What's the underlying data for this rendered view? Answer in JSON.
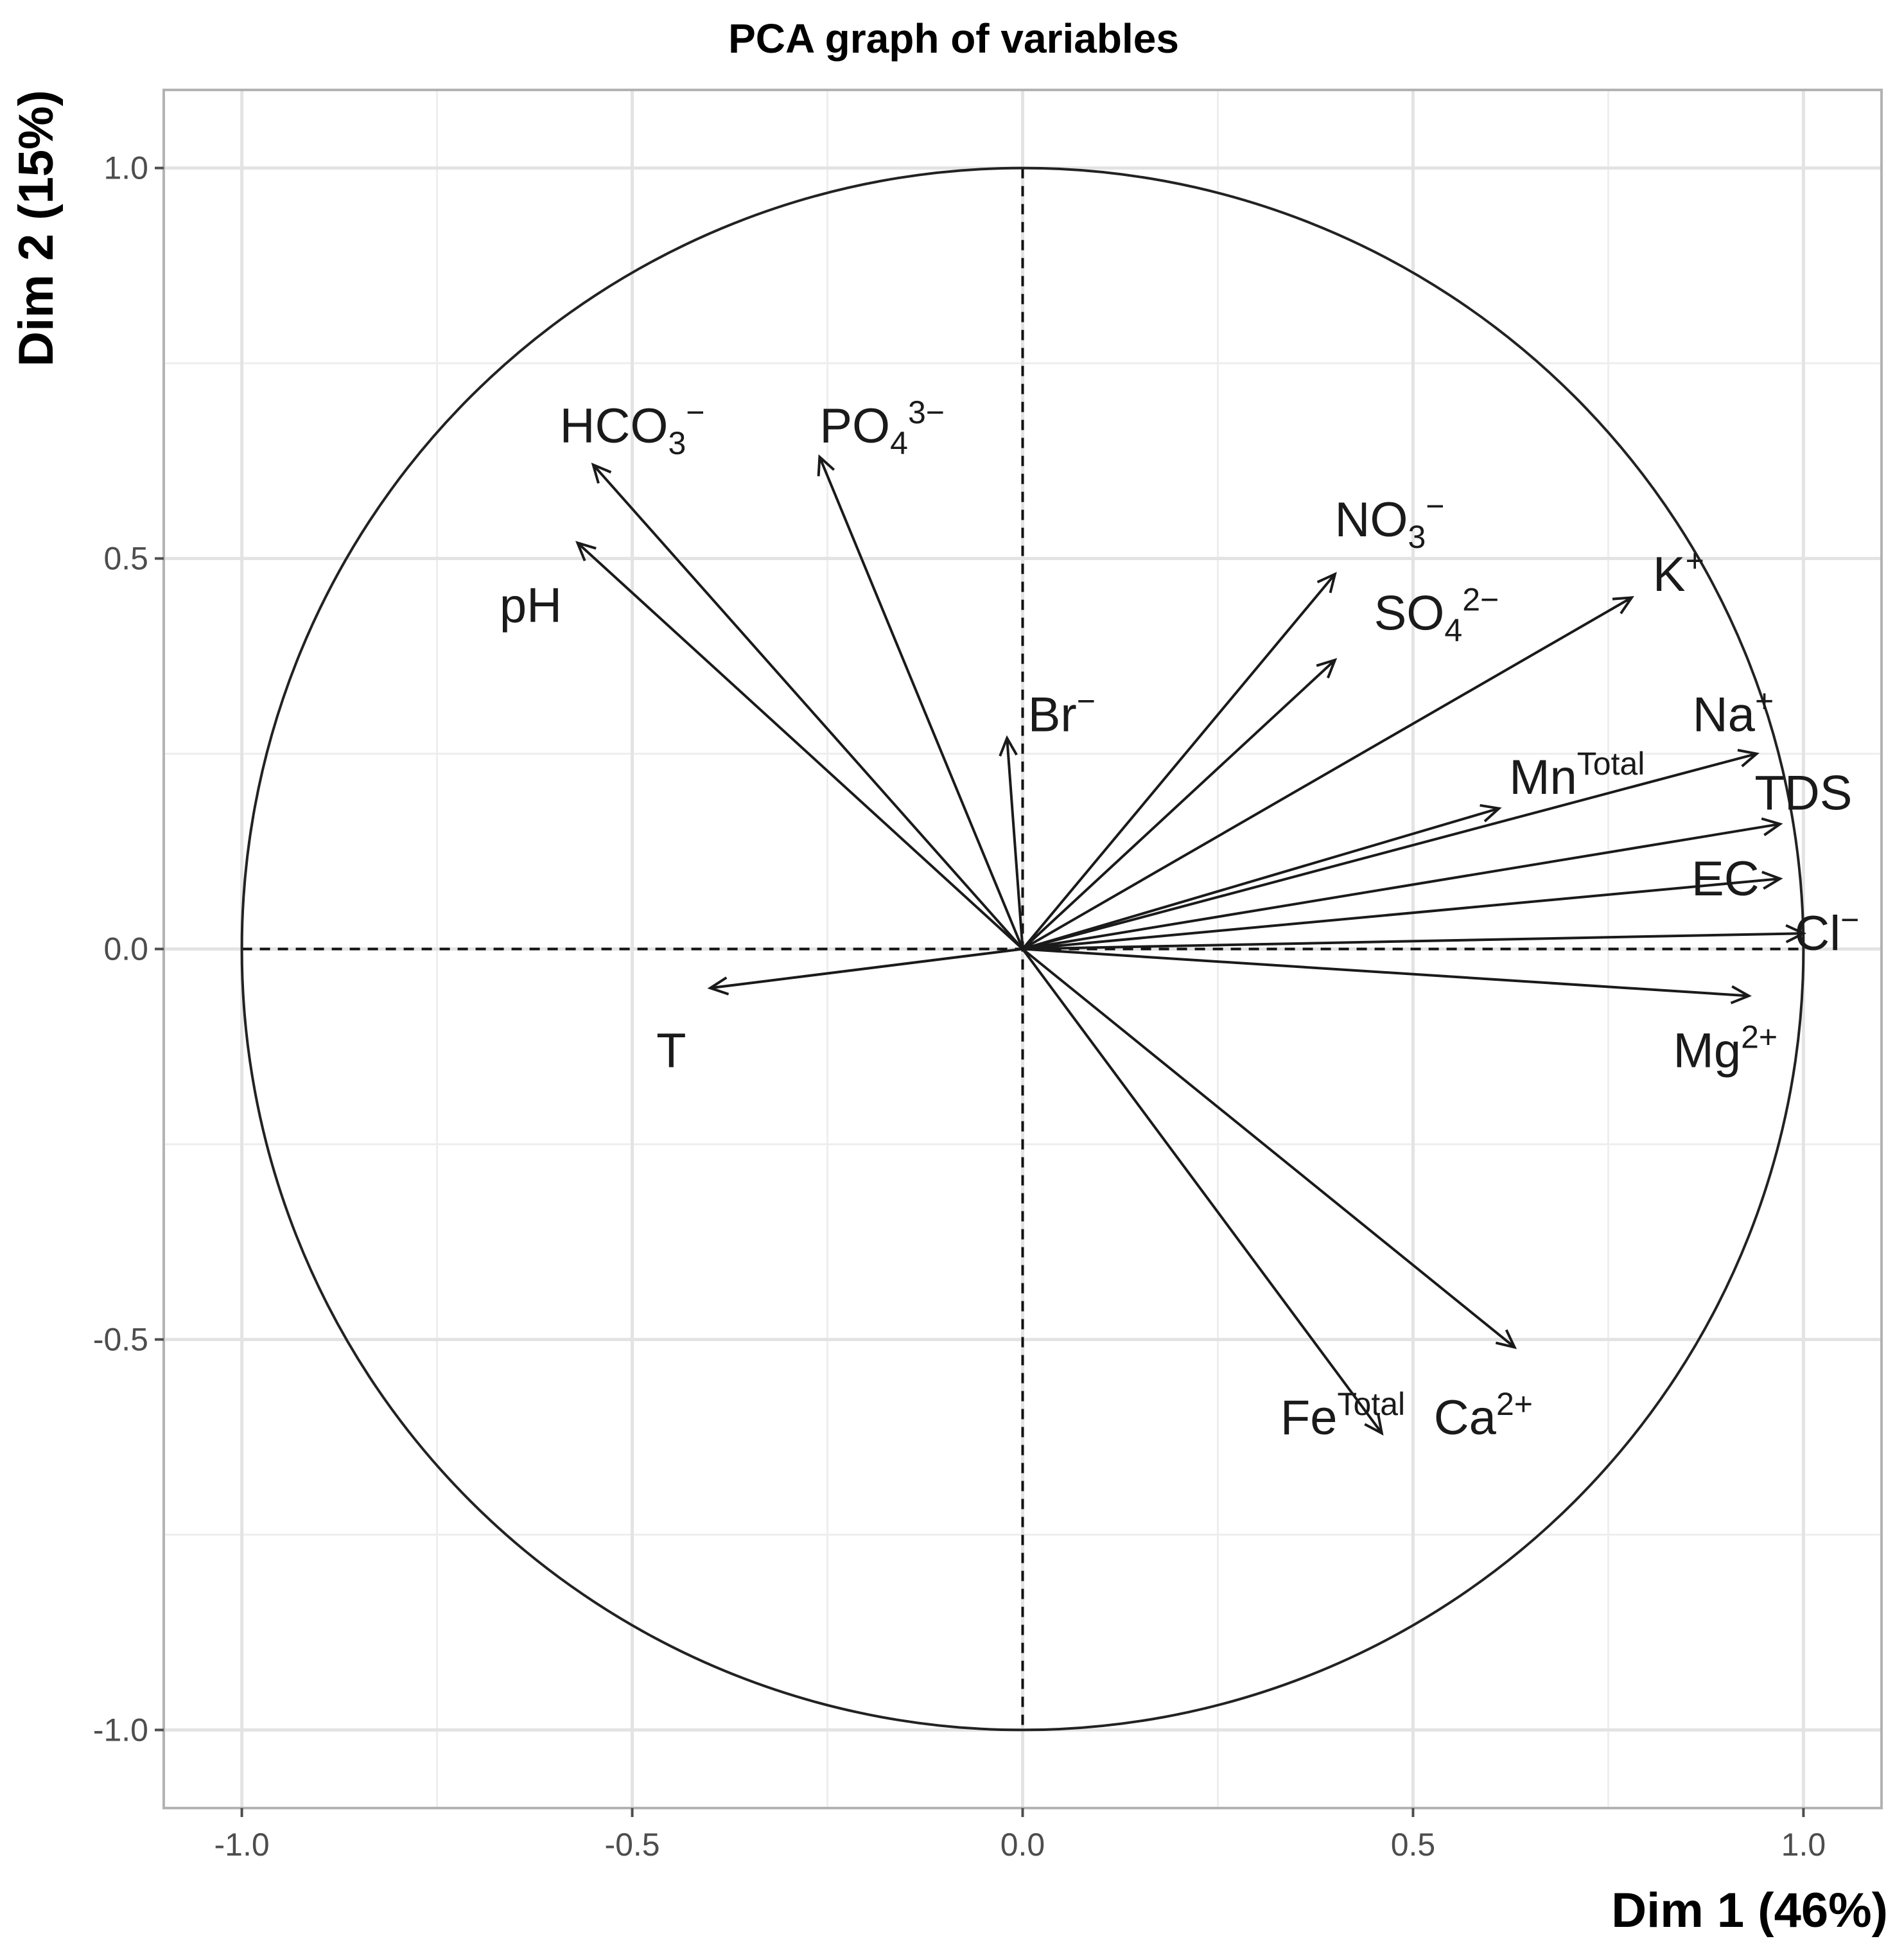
{
  "chart_data": {
    "type": "pca-variables",
    "title": "PCA graph of variables",
    "xlabel": "Dim 1 (46%)",
    "ylabel": "Dim 2 (15%)",
    "xlim": [
      -1.1,
      1.1
    ],
    "ylim": [
      -1.1,
      1.1
    ],
    "x_ticks": [
      -1.0,
      -0.5,
      0.0,
      0.5,
      1.0
    ],
    "y_ticks": [
      -1.0,
      -0.5,
      0.0,
      0.5,
      1.0
    ],
    "x_tick_labels": [
      "-1.0",
      "-0.5",
      "0.0",
      "0.5",
      "1.0"
    ],
    "y_tick_labels": [
      "-1.0",
      "-0.5",
      "0.0",
      "0.5",
      "1.0"
    ],
    "grid": true,
    "unit_circle": true,
    "variables": [
      {
        "id": "hco3",
        "label": "HCO",
        "sub": "3",
        "sup": "−",
        "x": -0.55,
        "y": 0.62,
        "lx": -0.5,
        "ly": 0.67
      },
      {
        "id": "po4",
        "label": "PO",
        "sub": "4",
        "sup": "3−",
        "x": -0.26,
        "y": 0.63,
        "lx": -0.18,
        "ly": 0.67
      },
      {
        "id": "ph",
        "label": "pH",
        "sub": "",
        "sup": "",
        "x": -0.57,
        "y": 0.52,
        "lx": -0.63,
        "ly": 0.44
      },
      {
        "id": "br",
        "label": "Br",
        "sub": "",
        "sup": "−",
        "x": -0.02,
        "y": 0.27,
        "lx": 0.05,
        "ly": 0.3
      },
      {
        "id": "no3",
        "label": "NO",
        "sub": "3",
        "sup": "−",
        "x": 0.4,
        "y": 0.48,
        "lx": 0.47,
        "ly": 0.55
      },
      {
        "id": "so4",
        "label": "SO",
        "sub": "4",
        "sup": "2−",
        "x": 0.4,
        "y": 0.37,
        "lx": 0.53,
        "ly": 0.43
      },
      {
        "id": "k",
        "label": "K",
        "sub": "",
        "sup": "+",
        "x": 0.78,
        "y": 0.45,
        "lx": 0.84,
        "ly": 0.48
      },
      {
        "id": "na",
        "label": "Na",
        "sub": "",
        "sup": "+",
        "x": 0.94,
        "y": 0.25,
        "lx": 0.91,
        "ly": 0.3
      },
      {
        "id": "mn",
        "label": "Mn",
        "sub": "",
        "sup": "Total",
        "x": 0.61,
        "y": 0.18,
        "lx": 0.71,
        "ly": 0.22
      },
      {
        "id": "tds",
        "label": "TDS",
        "sub": "",
        "sup": "",
        "x": 0.97,
        "y": 0.16,
        "lx": 1.0,
        "ly": 0.2
      },
      {
        "id": "ec",
        "label": "EC",
        "sub": "",
        "sup": "",
        "x": 0.97,
        "y": 0.09,
        "lx": 0.9,
        "ly": 0.09
      },
      {
        "id": "cl",
        "label": "Cl",
        "sub": "",
        "sup": "−",
        "x": 1.0,
        "y": 0.02,
        "lx": 1.03,
        "ly": 0.02
      },
      {
        "id": "mg",
        "label": "Mg",
        "sub": "",
        "sup": "2+",
        "x": 0.93,
        "y": -0.06,
        "lx": 0.9,
        "ly": -0.13
      },
      {
        "id": "t",
        "label": "T",
        "sub": "",
        "sup": "",
        "x": -0.4,
        "y": -0.05,
        "lx": -0.45,
        "ly": -0.13
      },
      {
        "id": "ca",
        "label": "Ca",
        "sub": "",
        "sup": "2+",
        "x": 0.63,
        "y": -0.51,
        "lx": 0.59,
        "ly": -0.6
      },
      {
        "id": "fe",
        "label": "Fe",
        "sub": "",
        "sup": "Total",
        "x": 0.46,
        "y": -0.62,
        "lx": 0.41,
        "ly": -0.6
      }
    ]
  }
}
